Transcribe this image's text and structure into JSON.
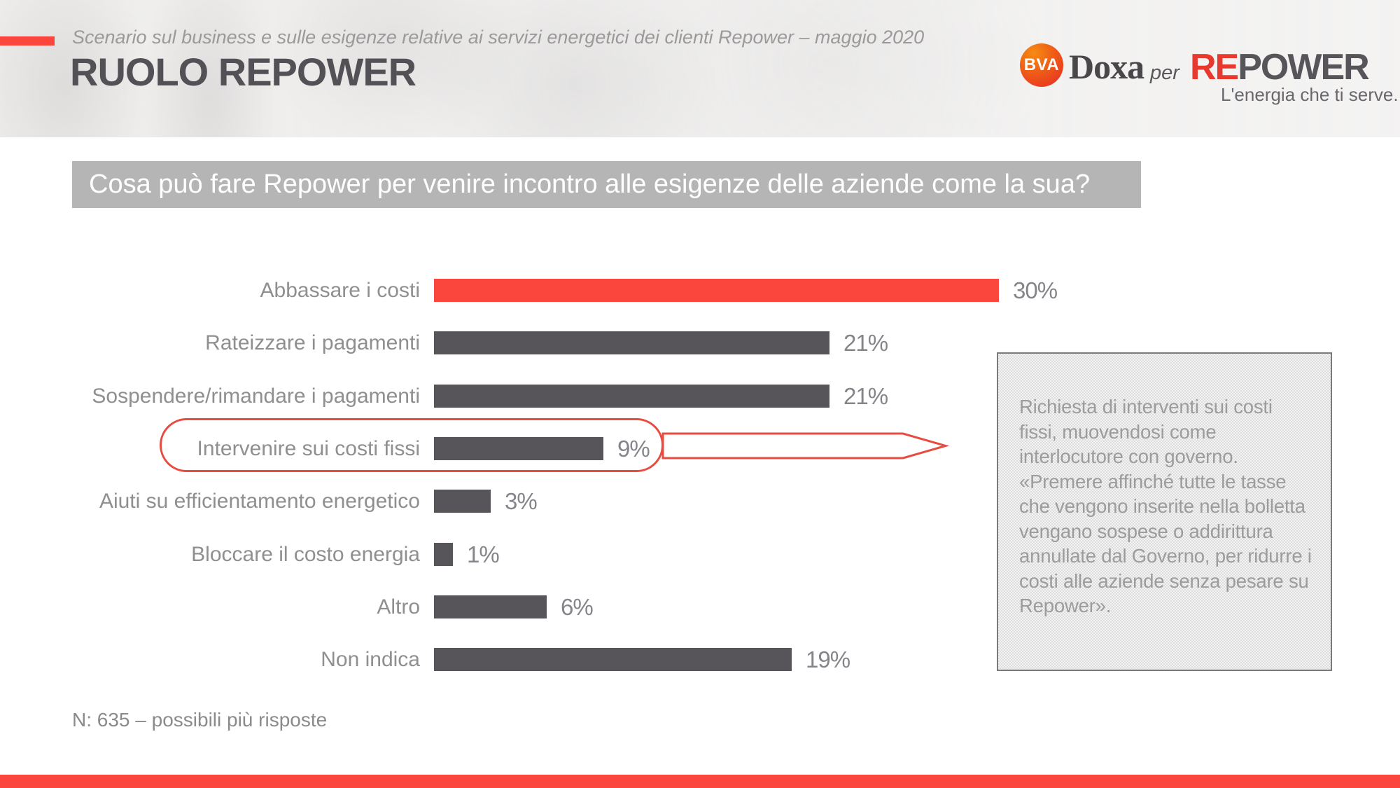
{
  "slide": {
    "subtitle": "Scenario sul business e sulle esigenze relative ai servizi energetici dei clienti Repower – maggio 2020",
    "title": "RUOLO REPOWER",
    "question": "Cosa può fare Repower per venire incontro alle esigenze delle aziende come la sua?",
    "note": "N: 635 – possibili più risposte"
  },
  "logos": {
    "bva": "BVA",
    "doxa": "Doxa",
    "per": "per",
    "repower_re": "RE",
    "repower_power": "POWER",
    "repower_tagline": "L'energia che ti serve."
  },
  "chart_data": {
    "type": "bar",
    "orientation": "horizontal",
    "title": "Cosa può fare Repower per venire incontro alle esigenze delle aziende come la sua?",
    "categories": [
      "Abbassare i costi",
      "Rateizzare i pagamenti",
      "Sospendere/rimandare i pagamenti",
      "Intervenire sui costi fissi",
      "Aiuti su efficientamento energetico",
      "Bloccare il costo energia",
      "Altro",
      "Non indica"
    ],
    "values": [
      30,
      21,
      21,
      9,
      3,
      1,
      6,
      19
    ],
    "value_labels": [
      "30%",
      "21%",
      "21%",
      "9%",
      "3%",
      "1%",
      "6%",
      "19%"
    ],
    "unit": "%",
    "xlim": [
      0,
      30
    ],
    "highlight_index": 0,
    "circled_index": 3,
    "grid": false,
    "legend": false
  },
  "callout": {
    "text": "Richiesta di interventi sui costi fissi, muovendosi come interlocutore con governo. «Premere affinché tutte le tasse che vengono inserite nella bolletta vengano sospese o addirittura annullate dal Governo, per ridurre i costi alle aziende senza pesare su Repower»."
  },
  "colors": {
    "accent_red": "#fb463d",
    "bar_gray": "#57545a",
    "banner_gray": "#b5b5b5",
    "ellipse_red": "#e84c41"
  }
}
